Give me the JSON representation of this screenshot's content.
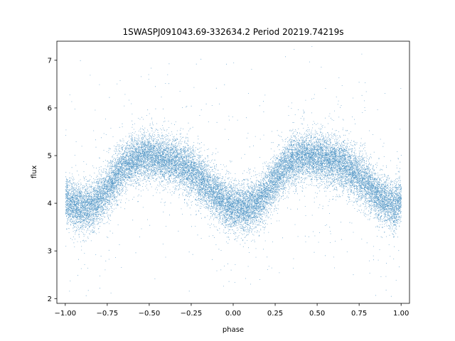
{
  "chart_data": {
    "type": "scatter",
    "title": "1SWASPJ091043.69-332634.2 Period 20219.74219s",
    "xlabel": "phase",
    "ylabel": "flux",
    "xlim": [
      -1.05,
      1.05
    ],
    "ylim": [
      1.9,
      7.4
    ],
    "xticks": [
      -1.0,
      -0.75,
      -0.5,
      -0.25,
      0.0,
      0.25,
      0.5,
      0.75,
      1.0
    ],
    "xtick_labels": [
      "−1.00",
      "−0.75",
      "−0.50",
      "−0.25",
      "0.00",
      "0.25",
      "0.50",
      "0.75",
      "1.00"
    ],
    "yticks": [
      2,
      3,
      4,
      5,
      6,
      7
    ],
    "ytick_labels": [
      "2",
      "3",
      "4",
      "5",
      "6",
      "7"
    ],
    "grid": false,
    "legend": "none",
    "series": [
      {
        "color": "#1f77b4",
        "marker": "point",
        "x": [
          -1.0,
          -0.96,
          -0.92,
          -0.88,
          -0.84,
          -0.8,
          -0.76,
          -0.72,
          -0.68,
          -0.64,
          -0.6,
          -0.56,
          -0.52,
          -0.48,
          -0.44,
          -0.4,
          -0.36,
          -0.32,
          -0.28,
          -0.24,
          -0.2,
          -0.16,
          -0.12,
          -0.08,
          -0.04,
          0.0,
          0.04,
          0.08,
          0.12,
          0.16,
          0.2,
          0.24,
          0.28,
          0.32,
          0.36,
          0.4,
          0.44,
          0.48,
          0.52,
          0.56,
          0.6,
          0.64,
          0.68,
          0.72,
          0.76,
          0.8,
          0.84,
          0.88,
          0.92,
          0.96,
          1.0
        ],
        "y": [
          4.1,
          3.98,
          3.92,
          3.91,
          3.96,
          4.08,
          4.25,
          4.45,
          4.65,
          4.8,
          4.91,
          4.98,
          5.0,
          4.98,
          4.95,
          4.92,
          4.88,
          4.83,
          4.75,
          4.65,
          4.53,
          4.39,
          4.24,
          4.1,
          3.99,
          3.92,
          3.9,
          3.91,
          3.96,
          4.08,
          4.25,
          4.45,
          4.65,
          4.8,
          4.91,
          4.98,
          5.0,
          4.98,
          4.95,
          4.92,
          4.88,
          4.83,
          4.75,
          4.65,
          4.53,
          4.39,
          4.24,
          4.1,
          3.99,
          3.93,
          4.1
        ],
        "scatter_spread": 0.32,
        "point_count": 24000
      }
    ]
  }
}
